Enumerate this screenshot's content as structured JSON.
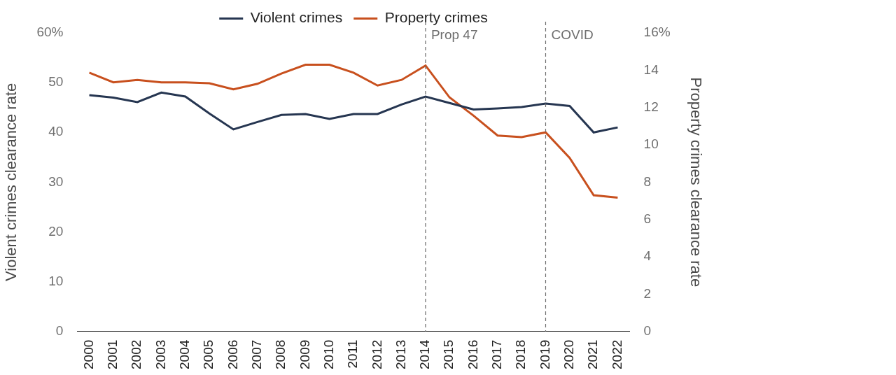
{
  "chart_data": {
    "type": "line",
    "categories": [
      "2000",
      "2001",
      "2002",
      "2003",
      "2004",
      "2005",
      "2006",
      "2007",
      "2008",
      "2009",
      "2010",
      "2011",
      "2012",
      "2013",
      "2014",
      "2015",
      "2016",
      "2017",
      "2018",
      "2019",
      "2020",
      "2021",
      "2022"
    ],
    "series": [
      {
        "name": "Violent crimes",
        "color": "#263651",
        "values": [
          47.5,
          47.0,
          46.1,
          48.0,
          47.2,
          43.8,
          40.6,
          42.1,
          43.5,
          43.7,
          42.7,
          43.7,
          43.7,
          45.6,
          47.2,
          45.9,
          44.6,
          44.8,
          45.1,
          45.8,
          45.3,
          40.0,
          41.0
        ]
      },
      {
        "name": "Property crimes",
        "color": "#c8501e",
        "axis": "y2",
        "values": [
          13.87,
          13.35,
          13.48,
          13.35,
          13.35,
          13.3,
          12.97,
          13.27,
          13.82,
          14.29,
          14.29,
          13.87,
          13.18,
          13.48,
          14.25,
          12.54,
          11.56,
          10.5,
          10.41,
          10.67,
          9.3,
          7.3,
          7.17
        ]
      }
    ],
    "y_label": "Violent crimes clearance rate",
    "y2_label": "Property crimes clearance rate",
    "ylim": [
      0,
      60
    ],
    "yticks": [
      0,
      10,
      20,
      30,
      40,
      50,
      {
        "value": 60,
        "label": "60%"
      }
    ],
    "y2lim": [
      0,
      16
    ],
    "y2ticks": [
      0,
      2,
      4,
      6,
      8,
      10,
      12,
      14,
      {
        "value": 16,
        "label": "16%"
      }
    ],
    "annotations": [
      {
        "x": "2014",
        "label": "Prop 47"
      },
      {
        "x": "2019",
        "label": "COVID"
      }
    ],
    "legend": "top",
    "grid": false,
    "line_style": "solid"
  }
}
